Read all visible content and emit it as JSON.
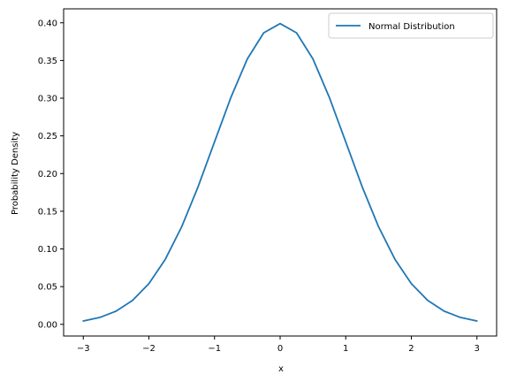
{
  "chart_data": {
    "type": "line",
    "title": "",
    "xlabel": "x",
    "ylabel": "Probability Density",
    "xlim": [
      -3.3,
      3.3
    ],
    "ylim": [
      -0.0155,
      0.4185
    ],
    "x_ticks": [
      -3,
      -2,
      -1,
      0,
      1,
      2,
      3
    ],
    "x_tick_labels": [
      "−3",
      "−2",
      "−1",
      "0",
      "1",
      "2",
      "3"
    ],
    "y_ticks": [
      0.0,
      0.05,
      0.1,
      0.15,
      0.2,
      0.25,
      0.3,
      0.35,
      0.4
    ],
    "y_tick_labels": [
      "0.00",
      "0.05",
      "0.10",
      "0.15",
      "0.20",
      "0.25",
      "0.30",
      "0.35",
      "0.40"
    ],
    "grid": false,
    "legend_position": "top-right",
    "series": [
      {
        "name": "Normal Distribution",
        "color": "#1f77b4",
        "x": [
          -3.0,
          -2.75,
          -2.5,
          -2.25,
          -2.0,
          -1.75,
          -1.5,
          -1.25,
          -1.0,
          -0.75,
          -0.5,
          -0.25,
          0.0,
          0.25,
          0.5,
          0.75,
          1.0,
          1.25,
          1.5,
          1.75,
          2.0,
          2.25,
          2.5,
          2.75,
          3.0
        ],
        "y": [
          0.0044,
          0.0091,
          0.0175,
          0.0317,
          0.054,
          0.0863,
          0.1295,
          0.1826,
          0.242,
          0.3011,
          0.3521,
          0.3867,
          0.3989,
          0.3867,
          0.3521,
          0.3011,
          0.242,
          0.1826,
          0.1295,
          0.0863,
          0.054,
          0.0317,
          0.0175,
          0.0091,
          0.0044
        ]
      }
    ]
  }
}
